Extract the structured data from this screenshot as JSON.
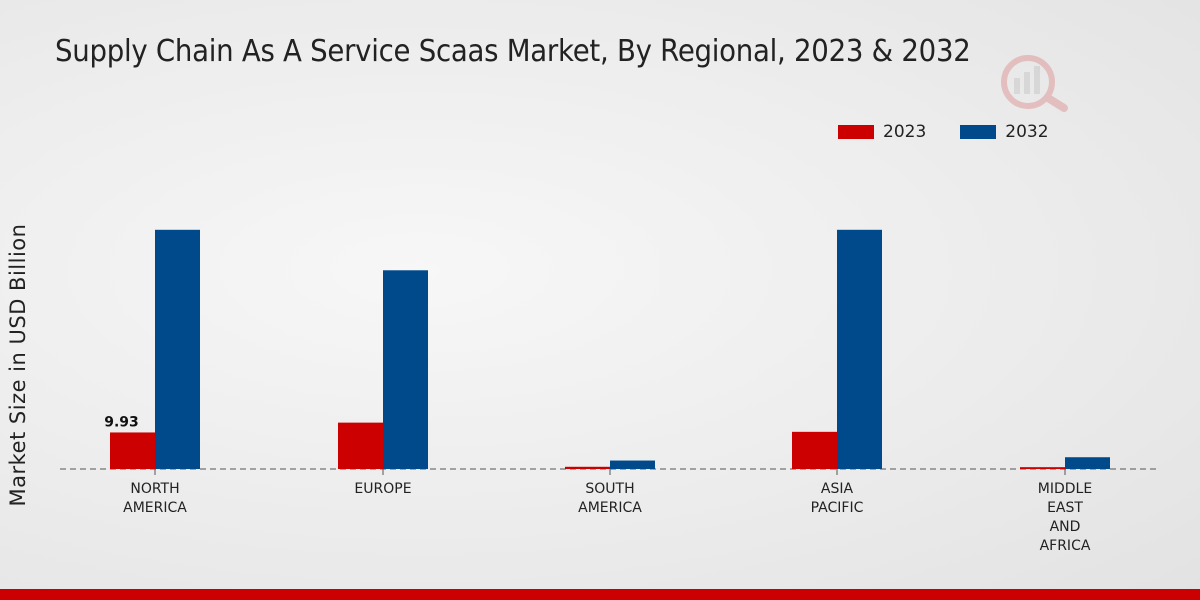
{
  "chart_data": {
    "type": "bar",
    "title": "Supply Chain As A Service Scaas Market, By Regional, 2023 & 2032",
    "xlabel": "",
    "ylabel": "Market Size in USD Billion",
    "categories": [
      [
        "NORTH",
        "AMERICA"
      ],
      [
        "EUROPE"
      ],
      [
        "SOUTH",
        "AMERICA"
      ],
      [
        "ASIA",
        "PACIFIC"
      ],
      [
        "MIDDLE",
        "EAST",
        "AND",
        "AFRICA"
      ]
    ],
    "series": [
      {
        "name": "2023",
        "color": "#cc0000",
        "values": [
          9.93,
          12.6,
          0.6,
          10.1,
          0.5
        ]
      },
      {
        "name": "2032",
        "color": "#004a8c",
        "values": [
          65.0,
          54.0,
          2.3,
          65.0,
          3.2
        ]
      }
    ],
    "data_labels": [
      {
        "series": 0,
        "index": 0,
        "text": "9.93"
      }
    ],
    "ylim": [
      0,
      100
    ],
    "grid": false,
    "legend_position": "top-right"
  }
}
